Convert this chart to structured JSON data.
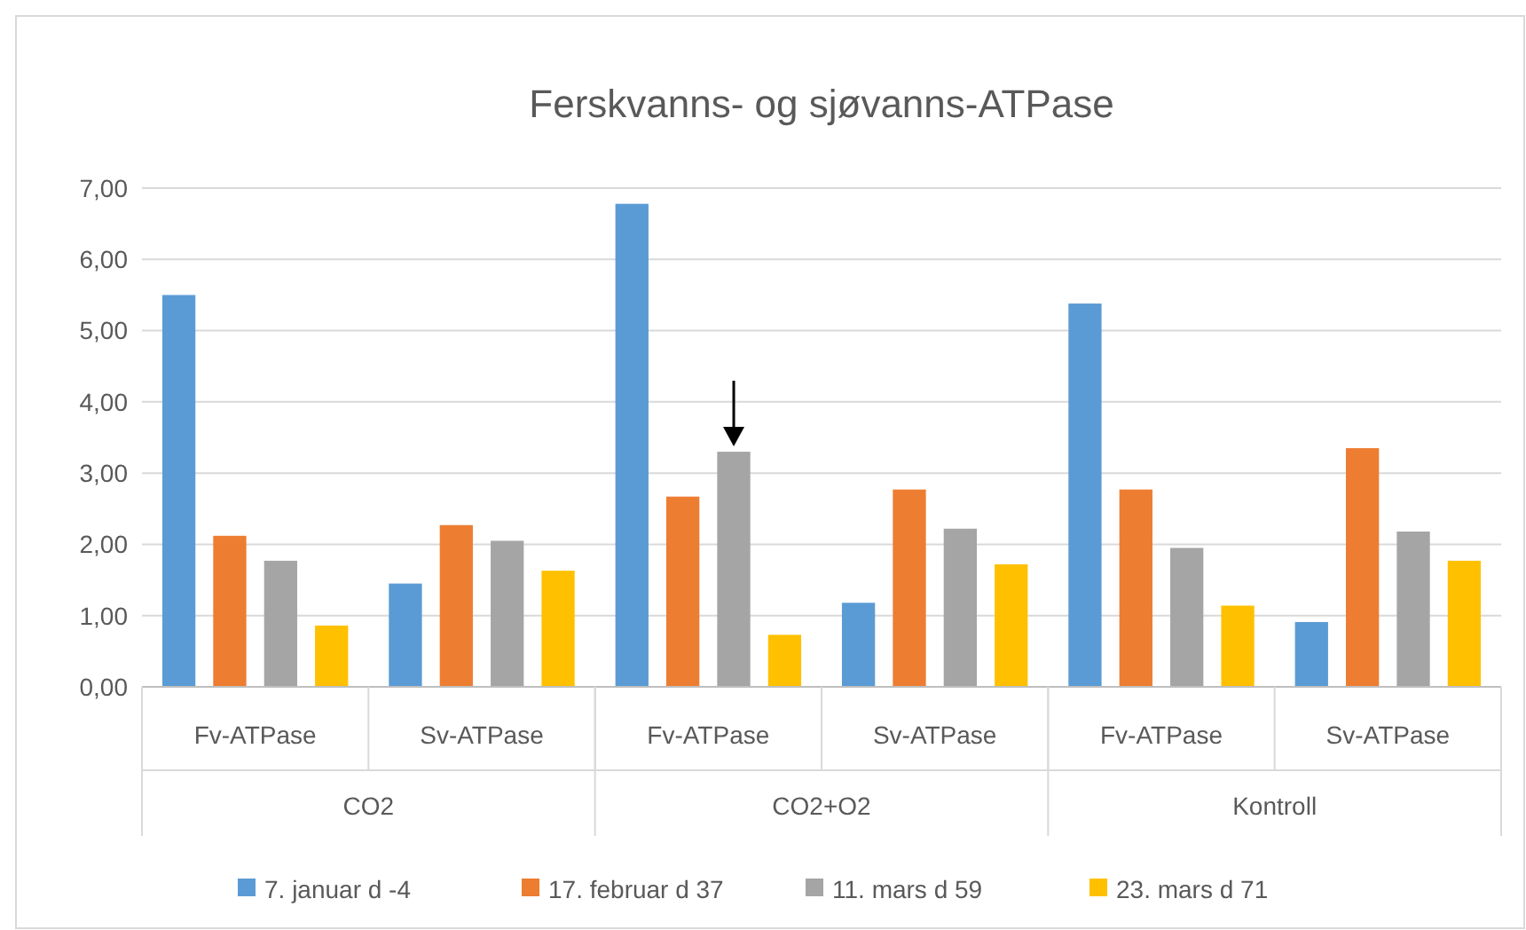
{
  "chart_data": {
    "type": "bar",
    "title": "Ferskvanns- og sjøvanns-ATPase",
    "categories": [
      "Fv-ATPase",
      "Sv-ATPase",
      "Fv-ATPase",
      "Sv-ATPase",
      "Fv-ATPase",
      "Sv-ATPase"
    ],
    "annotations": [
      "CO2",
      "CO2+O2",
      "Kontroll"
    ],
    "series": [
      {
        "name": "7. januar d -4",
        "color": "#5b9bd5",
        "values": [
          5.5,
          1.45,
          6.78,
          1.18,
          5.38,
          0.91
        ]
      },
      {
        "name": "17. februar d 37",
        "color": "#ed7d31",
        "values": [
          2.12,
          2.27,
          2.67,
          2.77,
          2.77,
          3.35
        ]
      },
      {
        "name": "11. mars d 59",
        "color": "#a5a5a5",
        "values": [
          1.77,
          2.05,
          3.3,
          2.22,
          1.95,
          2.18
        ]
      },
      {
        "name": "23. mars d 71",
        "color": "#ffc000",
        "values": [
          0.86,
          1.63,
          0.73,
          1.72,
          1.14,
          1.77
        ]
      }
    ],
    "ylim": [
      0,
      7
    ],
    "yticks": [
      {
        "value": 0,
        "label": "0,00"
      },
      {
        "value": 1,
        "label": "1,00"
      },
      {
        "value": 2,
        "label": "2,00"
      },
      {
        "value": 3,
        "label": "3,00"
      },
      {
        "value": 4,
        "label": "4,00"
      },
      {
        "value": 5,
        "label": "5,00"
      },
      {
        "value": 6,
        "label": "6,00"
      },
      {
        "value": 7,
        "label": "7,00"
      }
    ],
    "grid": "y",
    "legend": "bottom"
  }
}
